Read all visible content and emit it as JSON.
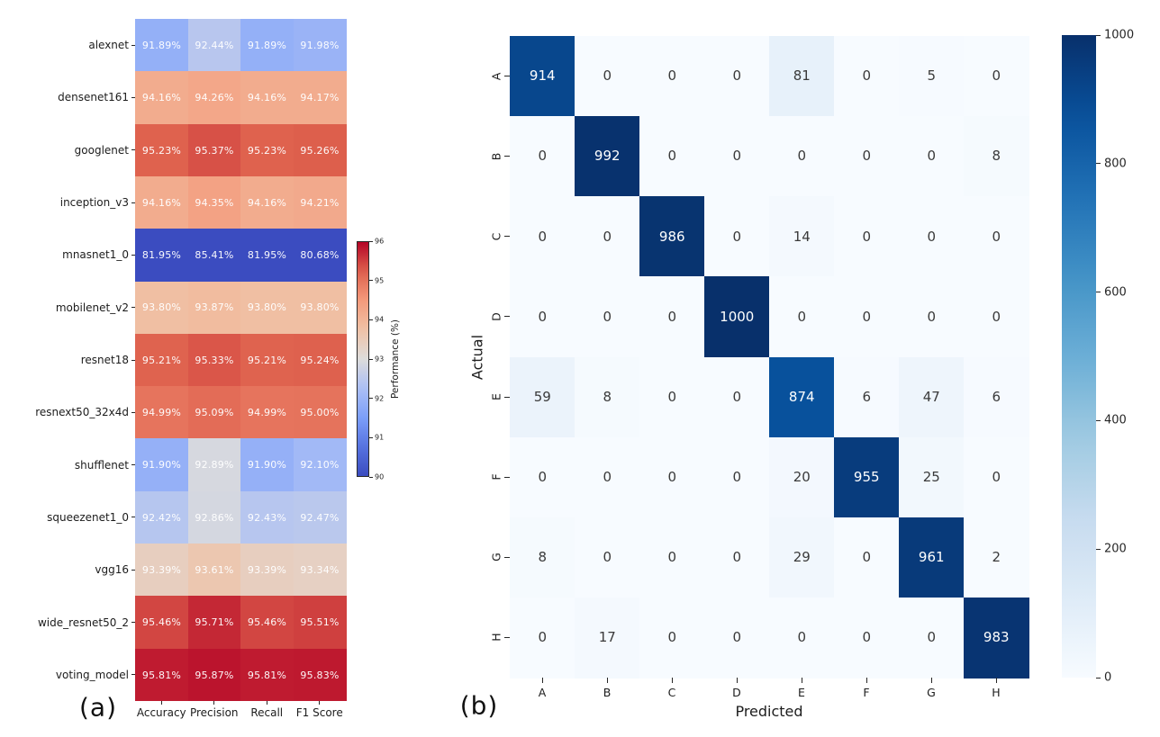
{
  "chart_data": [
    {
      "type": "heatmap",
      "panel_label": "(a)",
      "title": "",
      "rows": [
        "alexnet",
        "densenet161",
        "googlenet",
        "inception_v3",
        "mnasnet1_0",
        "mobilenet_v2",
        "resnet18",
        "resnext50_32x4d",
        "shufflenet",
        "squeezenet1_0",
        "vgg16",
        "wide_resnet50_2",
        "voting_model"
      ],
      "columns": [
        "Accuracy",
        "Precision",
        "Recall",
        "F1 Score"
      ],
      "values": [
        [
          91.89,
          92.44,
          91.89,
          91.98
        ],
        [
          94.16,
          94.26,
          94.16,
          94.17
        ],
        [
          95.23,
          95.37,
          95.23,
          95.26
        ],
        [
          94.16,
          94.35,
          94.16,
          94.21
        ],
        [
          81.95,
          85.41,
          81.95,
          80.68
        ],
        [
          93.8,
          93.87,
          93.8,
          93.8
        ],
        [
          95.21,
          95.33,
          95.21,
          95.24
        ],
        [
          94.99,
          95.09,
          94.99,
          95.0
        ],
        [
          91.9,
          92.89,
          91.9,
          92.1
        ],
        [
          92.42,
          92.86,
          92.43,
          92.47
        ],
        [
          93.39,
          93.61,
          93.39,
          93.34
        ],
        [
          95.46,
          95.71,
          95.46,
          95.51
        ],
        [
          95.81,
          95.87,
          95.81,
          95.83
        ]
      ],
      "value_decimals": 2,
      "value_suffix": "%",
      "colormap": "coolwarm",
      "vmin": 90,
      "vmax": 96,
      "grid": false,
      "colorbar": {
        "position": "right",
        "label": "Performance (%)",
        "ticks": [
          96,
          95,
          94,
          93,
          92,
          91,
          90
        ]
      }
    },
    {
      "type": "heatmap",
      "panel_label": "(b)",
      "title": "",
      "rows": [
        "A",
        "B",
        "C",
        "D",
        "E",
        "F",
        "G",
        "H"
      ],
      "columns": [
        "A",
        "B",
        "C",
        "D",
        "E",
        "F",
        "G",
        "H"
      ],
      "xlabel": "Predicted",
      "ylabel": "Actual",
      "values": [
        [
          914,
          0,
          0,
          0,
          81,
          0,
          5,
          0
        ],
        [
          0,
          992,
          0,
          0,
          0,
          0,
          0,
          8
        ],
        [
          0,
          0,
          986,
          0,
          14,
          0,
          0,
          0
        ],
        [
          0,
          0,
          0,
          1000,
          0,
          0,
          0,
          0
        ],
        [
          59,
          8,
          0,
          0,
          874,
          6,
          47,
          6
        ],
        [
          0,
          0,
          0,
          0,
          20,
          955,
          25,
          0
        ],
        [
          8,
          0,
          0,
          0,
          29,
          0,
          961,
          2
        ],
        [
          0,
          17,
          0,
          0,
          0,
          0,
          0,
          983
        ]
      ],
      "value_decimals": 0,
      "value_suffix": "",
      "colormap": "Blues",
      "vmin": 0,
      "vmax": 1000,
      "grid": false,
      "colorbar": {
        "position": "right",
        "label": "",
        "ticks": [
          1000,
          800,
          600,
          400,
          200,
          0
        ]
      }
    }
  ],
  "colors": {
    "background": "#ffffff",
    "text": "#1c1c1c",
    "heatmap_a_cell_text": "#ffffff",
    "matrix_text_dark": "#3a3a3a",
    "matrix_text_light": "#ffffff",
    "coolwarm_low": "#3b4cc0",
    "coolwarm_mid": "#dddddd",
    "coolwarm_high": "#b40426",
    "blues_low": "#f7fbff",
    "blues_high": "#08306b"
  }
}
